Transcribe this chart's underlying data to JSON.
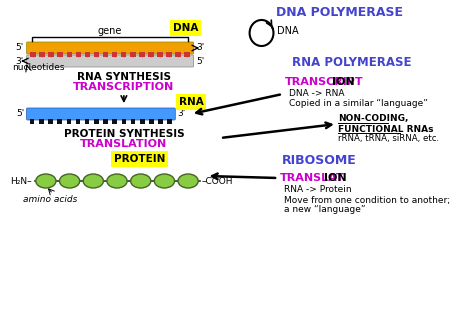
{
  "bg_color": "#ffffff",
  "dna_label": "DNA",
  "gene_label": "gene",
  "rna_label": "RNA",
  "protein_label": "PROTEIN",
  "nucleotides_label": "nucleotides",
  "amino_acids_label": "amino acids",
  "rna_synthesis_label": "RNA SYNTHESIS",
  "transcription_label": "TRANSCRIPTION",
  "protein_synthesis_label": "PROTEIN SYNTHESIS",
  "translation_label": "TRANSLATION",
  "dna_polymerase_label": "DNA POLYMERASE",
  "rna_polymerase_label": "RNA POLYMERASE",
  "transcription_right_part1": "TRANSCRIPT",
  "transcription_right_part2": "ION",
  "transcription_right_sub1": "DNA -> RNA",
  "transcription_right_sub2": "Copied in a similar “language”",
  "noncoding_label": "NON-CODING,",
  "functional_rna_label": "FUNCTIONAL RNAs",
  "functional_rna_sub": "rRNA, tRNA, siRNA, etc.",
  "ribosome_label": "RIBOSOME",
  "translation_right_part1": "TRANSLAT",
  "translation_right_part2": "ION",
  "translation_right_sub1": "RNA -> Protein",
  "translation_right_sub2": "Move from one condition to another;",
  "translation_right_sub3": "a new “language”",
  "dna_label2": "DNA",
  "color_blue": "#4444cc",
  "color_magenta": "#cc00cc",
  "color_black": "#111111",
  "color_yellow_bg": "#ffff00",
  "color_dna_top": "#f0a000",
  "color_dna_bottom": "#cccccc",
  "color_rna_strand": "#4499ff",
  "color_protein_green": "#88cc44",
  "color_arrow": "#111111"
}
